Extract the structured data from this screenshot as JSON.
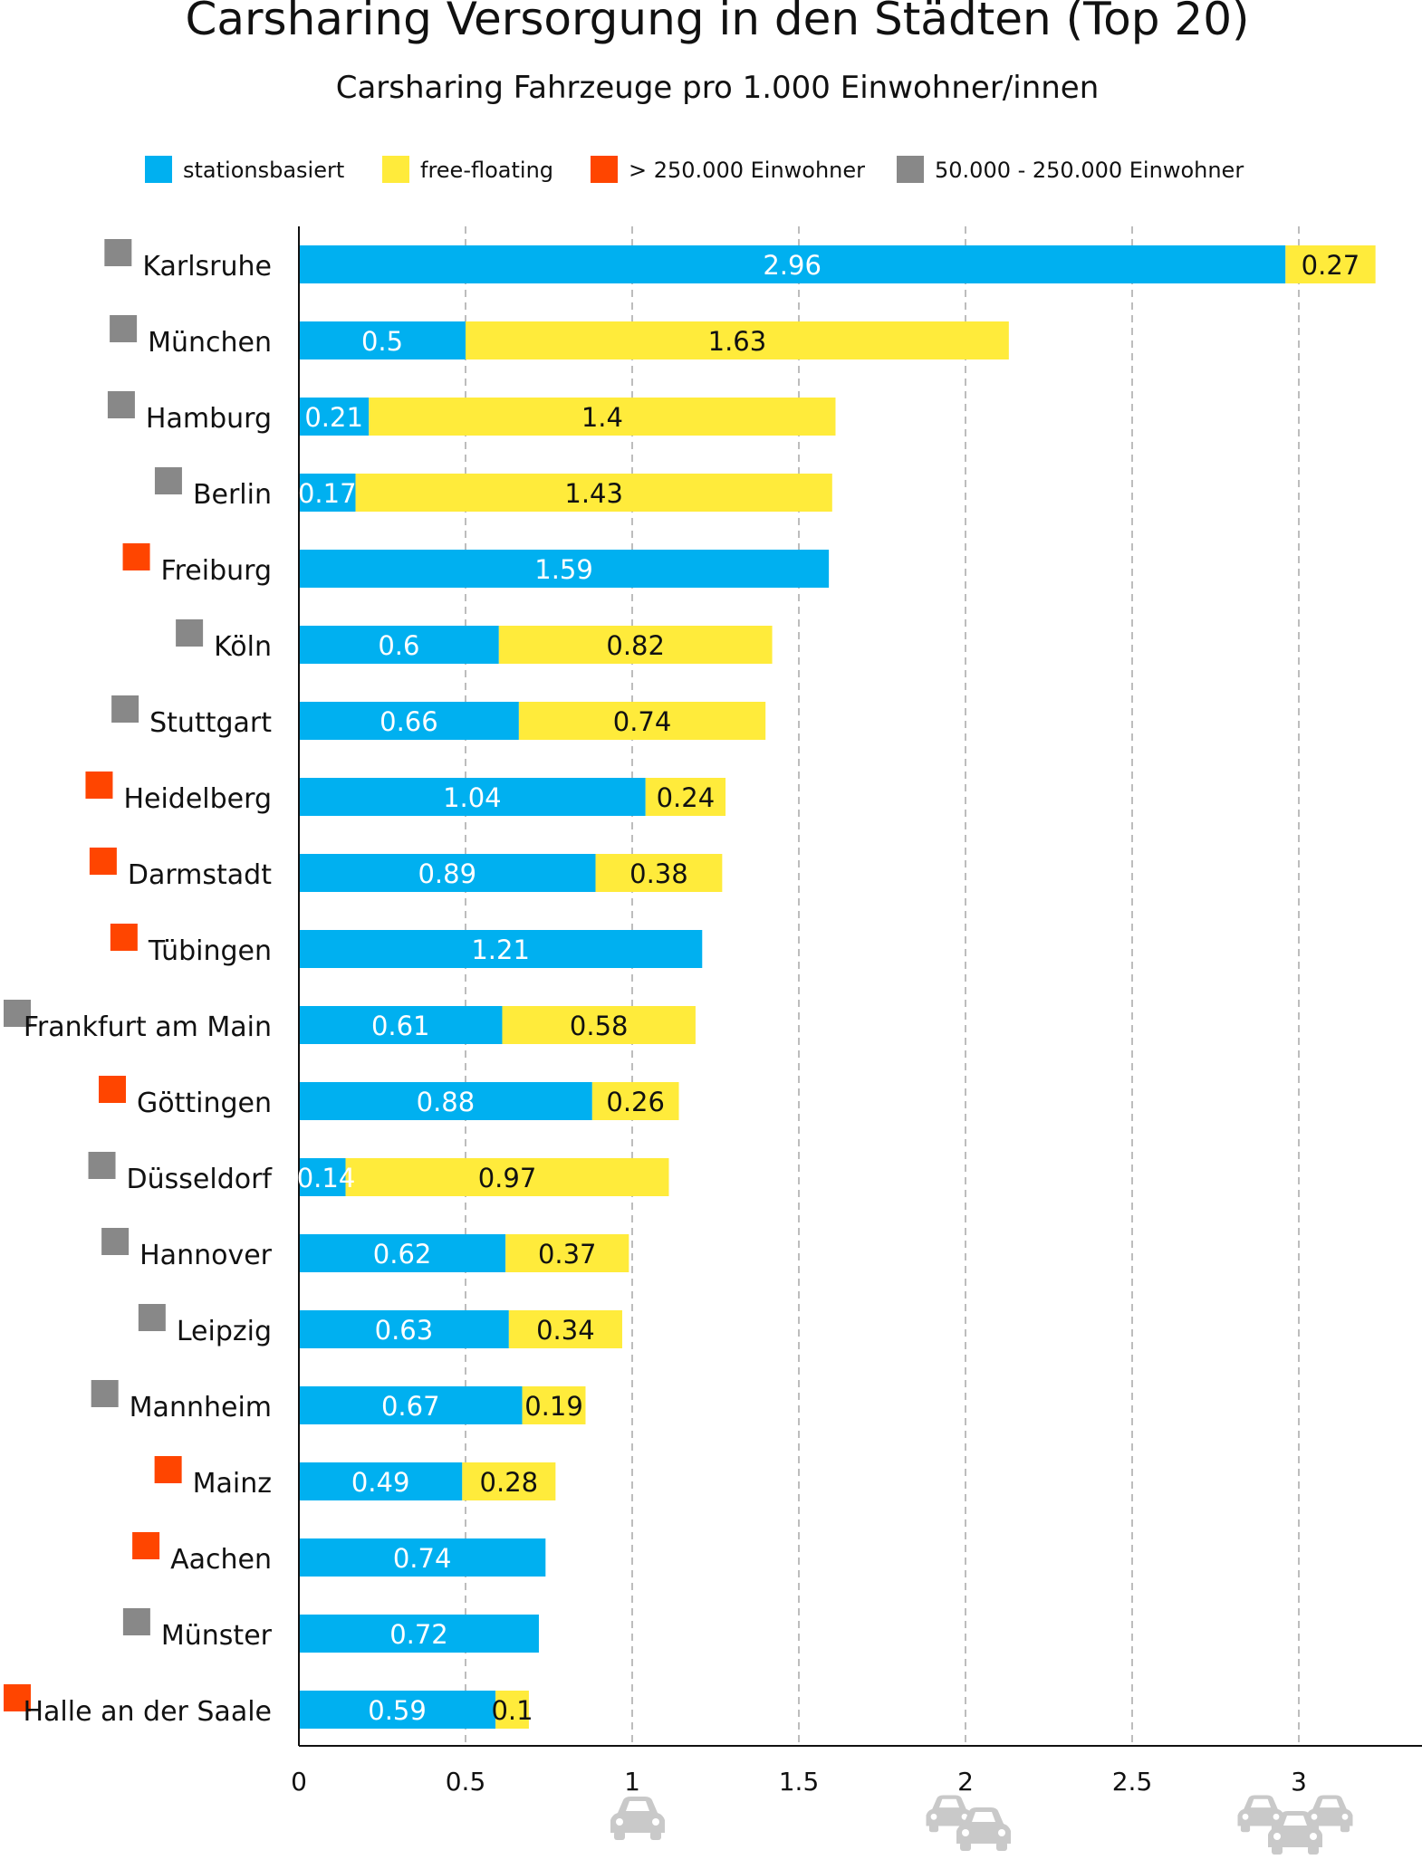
{
  "chart_data": {
    "type": "bar",
    "orientation": "horizontal",
    "stacked": true,
    "title": "Carsharing Versorgung in den Städten (Top 20)",
    "subtitle": "Carsharing Fahrzeuge pro 1.000 Einwohner/innen",
    "xlabel": "",
    "ylabel": "",
    "xlim": [
      0,
      3.3
    ],
    "x_ticks": [
      "0",
      "0.5",
      "1",
      "1.5",
      "2",
      "2.5",
      "3"
    ],
    "grid": true,
    "legend_position": "top",
    "legend": [
      {
        "label": "stationsbasiert",
        "color": "#00b0f0"
      },
      {
        "label": "free-floating",
        "color": "#ffeb3b"
      },
      {
        "label": "> 250.000 Einwohner",
        "color": "#ff4500"
      },
      {
        "label": "50.000 - 250.000 Einwohner",
        "color": "#888888"
      }
    ],
    "categories": [
      "Karlsruhe",
      "München",
      "Hamburg",
      "Berlin",
      "Freiburg",
      "Köln",
      "Stuttgart",
      "Heidelberg",
      "Darmstadt",
      "Tübingen",
      "Frankfurt am Main",
      "Göttingen",
      "Düsseldorf",
      "Hannover",
      "Leipzig",
      "Mannheim",
      "Mainz",
      "Aachen",
      "Münster",
      "Halle an der Saale"
    ],
    "marker_colors": [
      "#888888",
      "#888888",
      "#888888",
      "#888888",
      "#ff4500",
      "#888888",
      "#888888",
      "#ff4500",
      "#ff4500",
      "#ff4500",
      "#888888",
      "#ff4500",
      "#888888",
      "#888888",
      "#888888",
      "#888888",
      "#ff4500",
      "#ff4500",
      "#888888",
      "#ff4500"
    ],
    "series": [
      {
        "name": "stationsbasiert",
        "color": "#00b0f0",
        "values": [
          2.96,
          0.5,
          0.21,
          0.17,
          1.59,
          0.6,
          0.66,
          1.04,
          0.89,
          1.21,
          0.61,
          0.88,
          0.14,
          0.62,
          0.63,
          0.67,
          0.49,
          0.74,
          0.72,
          0.59
        ],
        "labels": [
          "2.96",
          "0.5",
          "0.21",
          "0.17",
          "1.59",
          "0.6",
          "0.66",
          "1.04",
          "0.89",
          "1.21",
          "0.61",
          "0.88",
          "0.14",
          "0.62",
          "0.63",
          "0.67",
          "0.49",
          "0.74",
          "0.72",
          "0.59"
        ]
      },
      {
        "name": "free-floating",
        "color": "#ffeb3b",
        "values": [
          0.27,
          1.63,
          1.4,
          1.43,
          0,
          0.82,
          0.74,
          0.24,
          0.38,
          0,
          0.58,
          0.26,
          0.97,
          0.37,
          0.34,
          0.19,
          0.28,
          0,
          0,
          0.1
        ],
        "labels": [
          "0.27",
          "1.63",
          "1.4",
          "1.43",
          "",
          "0.82",
          "0.74",
          "0.24",
          "0.38",
          "",
          "0.58",
          "0.26",
          "0.97",
          "0.37",
          "0.34",
          "0.19",
          "0.28",
          "",
          "",
          "0.1"
        ]
      }
    ],
    "axis_icons": [
      {
        "name": "single-car-icon",
        "near_tick": "1",
        "cars": 1
      },
      {
        "name": "two-cars-icon",
        "near_tick": "2",
        "cars": 2
      },
      {
        "name": "three-cars-icon",
        "near_tick": "3",
        "cars": 3
      }
    ]
  }
}
